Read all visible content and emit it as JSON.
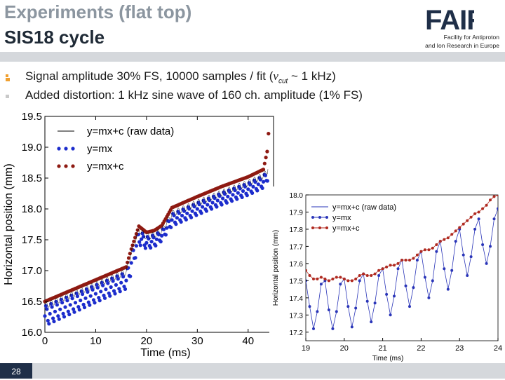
{
  "header": {
    "title_line1": "Experiments (flat top)",
    "title_line2": "SIS18 cycle",
    "logo_text": "FAIR",
    "org_line1": "Facility for Antiproton",
    "org_line2": "and Ion Research in Europe"
  },
  "bullets": [
    {
      "pre": "Signal amplitude 30% FS, 10000 samples / fit (",
      "italic": "v",
      "sub": "cut",
      "post": "  ~ 1 kHz)"
    },
    {
      "text": "Added distortion: 1 kHz sine wave of 160 ch. amplitude (1% FS)"
    }
  ],
  "footer": {
    "page_number": "28"
  },
  "colors": {
    "title_gray": "#8c96a0",
    "title_dark": "#1f2a36",
    "bullet_orange": "#f0a030",
    "band_gray": "#d5d8dc",
    "page_box": "#1f2f48",
    "series_blue": "#1c2ccc",
    "series_red": "#8e1a12"
  },
  "chart_data": [
    {
      "type": "scatter",
      "xlabel": "Time (ms)",
      "ylabel": "Horizontal position (mm)",
      "xlim": [
        0,
        45
      ],
      "ylim": [
        16.0,
        19.5
      ],
      "xticks": [
        0,
        10,
        20,
        30,
        40
      ],
      "yticks": [
        16.0,
        16.5,
        17.0,
        17.5,
        18.0,
        18.5,
        19.0,
        19.5
      ],
      "xtick_labels": [
        "0",
        "10",
        "20",
        "30",
        "40"
      ],
      "ytick_labels": [
        "16.0",
        "16.5",
        "17.0",
        "17.5",
        "18.0",
        "18.5",
        "19.0",
        "19.5"
      ],
      "grid": false,
      "legend_position": "top-left",
      "series": [
        {
          "name": "y=mx+c (raw data)",
          "style": "line",
          "color": "#000000"
        },
        {
          "name": "y=mx",
          "style": "dots",
          "color": "#1c2ccc"
        },
        {
          "name": "y=mx+c",
          "style": "dots",
          "color": "#8e1a12"
        }
      ],
      "trend": {
        "x": [
          0,
          10,
          16,
          17,
          18.5,
          20,
          21.5,
          23,
          25,
          30,
          35,
          40,
          43,
          43.8,
          44
        ],
        "mean": [
          16.43,
          16.77,
          16.98,
          17.3,
          17.66,
          17.55,
          17.58,
          17.65,
          17.92,
          18.1,
          18.27,
          18.42,
          18.54,
          18.62,
          18.73
        ],
        "top": [
          16.5,
          16.85,
          17.06,
          17.35,
          17.72,
          17.62,
          17.65,
          17.73,
          18.02,
          18.2,
          18.37,
          18.52,
          18.64,
          18.95,
          19.22
        ],
        "bottom": [
          16.1,
          16.48,
          16.7,
          16.95,
          17.42,
          17.35,
          17.38,
          17.48,
          17.72,
          17.9,
          18.07,
          18.22,
          18.34,
          18.45,
          18.55
        ]
      }
    },
    {
      "type": "line",
      "xlabel": "Time (ms)",
      "ylabel": "Horizontal position (mm)",
      "xlim": [
        19,
        24
      ],
      "ylim": [
        17.15,
        18.0
      ],
      "xticks": [
        19,
        20,
        21,
        22,
        23,
        24
      ],
      "yticks": [
        17.2,
        17.3,
        17.4,
        17.5,
        17.6,
        17.7,
        17.8,
        17.9,
        18.0
      ],
      "xtick_labels": [
        "19",
        "20",
        "21",
        "22",
        "23",
        "24"
      ],
      "ytick_labels": [
        "17.2",
        "17.3",
        "17.4",
        "17.5",
        "17.6",
        "17.7",
        "17.8",
        "17.9",
        "18.0"
      ],
      "grid": false,
      "legend_position": "top-left",
      "series": [
        {
          "name": "y=mx+c (raw data)",
          "style": "line",
          "color": "#2a35b8"
        },
        {
          "name": "y=mx",
          "style": "line-dots",
          "color": "#2a35b8",
          "x": [
            19.0,
            19.1,
            19.2,
            19.3,
            19.4,
            19.5,
            19.6,
            19.7,
            19.8,
            19.9,
            20.0,
            20.1,
            20.2,
            20.3,
            20.4,
            20.5,
            20.6,
            20.7,
            20.8,
            20.9,
            21.0,
            21.1,
            21.2,
            21.3,
            21.4,
            21.5,
            21.6,
            21.7,
            21.8,
            21.9,
            22.0,
            22.1,
            22.2,
            22.3,
            22.4,
            22.5,
            22.6,
            22.7,
            22.8,
            22.9,
            23.0,
            23.1,
            23.2,
            23.3,
            23.4,
            23.5,
            23.6,
            23.7,
            23.8,
            23.9,
            24.0
          ],
          "y": [
            17.5,
            17.35,
            17.22,
            17.32,
            17.48,
            17.5,
            17.33,
            17.22,
            17.32,
            17.48,
            17.51,
            17.35,
            17.23,
            17.34,
            17.5,
            17.54,
            17.38,
            17.26,
            17.37,
            17.53,
            17.57,
            17.42,
            17.3,
            17.41,
            17.57,
            17.62,
            17.47,
            17.35,
            17.46,
            17.62,
            17.67,
            17.52,
            17.4,
            17.5,
            17.67,
            17.73,
            17.57,
            17.45,
            17.56,
            17.73,
            17.8,
            17.65,
            17.53,
            17.64,
            17.8,
            17.86,
            17.71,
            17.6,
            17.7,
            17.86,
            17.92
          ]
        },
        {
          "name": "y=mx+c",
          "style": "line-dots",
          "color": "#b02a20",
          "x": [
            19.0,
            19.1,
            19.2,
            19.3,
            19.4,
            19.5,
            19.6,
            19.7,
            19.8,
            19.9,
            20.0,
            20.1,
            20.2,
            20.3,
            20.4,
            20.5,
            20.6,
            20.7,
            20.8,
            20.9,
            21.0,
            21.1,
            21.2,
            21.3,
            21.4,
            21.5,
            21.6,
            21.7,
            21.8,
            21.9,
            22.0,
            22.1,
            22.2,
            22.3,
            22.4,
            22.5,
            22.6,
            22.7,
            22.8,
            22.9,
            23.0,
            23.1,
            23.2,
            23.3,
            23.4,
            23.5,
            23.6,
            23.7,
            23.8,
            23.9,
            24.0
          ],
          "y": [
            17.56,
            17.53,
            17.51,
            17.51,
            17.52,
            17.51,
            17.5,
            17.51,
            17.52,
            17.52,
            17.51,
            17.5,
            17.5,
            17.51,
            17.53,
            17.54,
            17.53,
            17.53,
            17.54,
            17.56,
            17.57,
            17.58,
            17.59,
            17.59,
            17.6,
            17.62,
            17.62,
            17.62,
            17.63,
            17.65,
            17.67,
            17.68,
            17.68,
            17.69,
            17.71,
            17.73,
            17.74,
            17.75,
            17.77,
            17.79,
            17.81,
            17.83,
            17.85,
            17.87,
            17.89,
            17.9,
            17.92,
            17.94,
            17.97,
            17.99,
            18.0
          ]
        }
      ]
    }
  ]
}
